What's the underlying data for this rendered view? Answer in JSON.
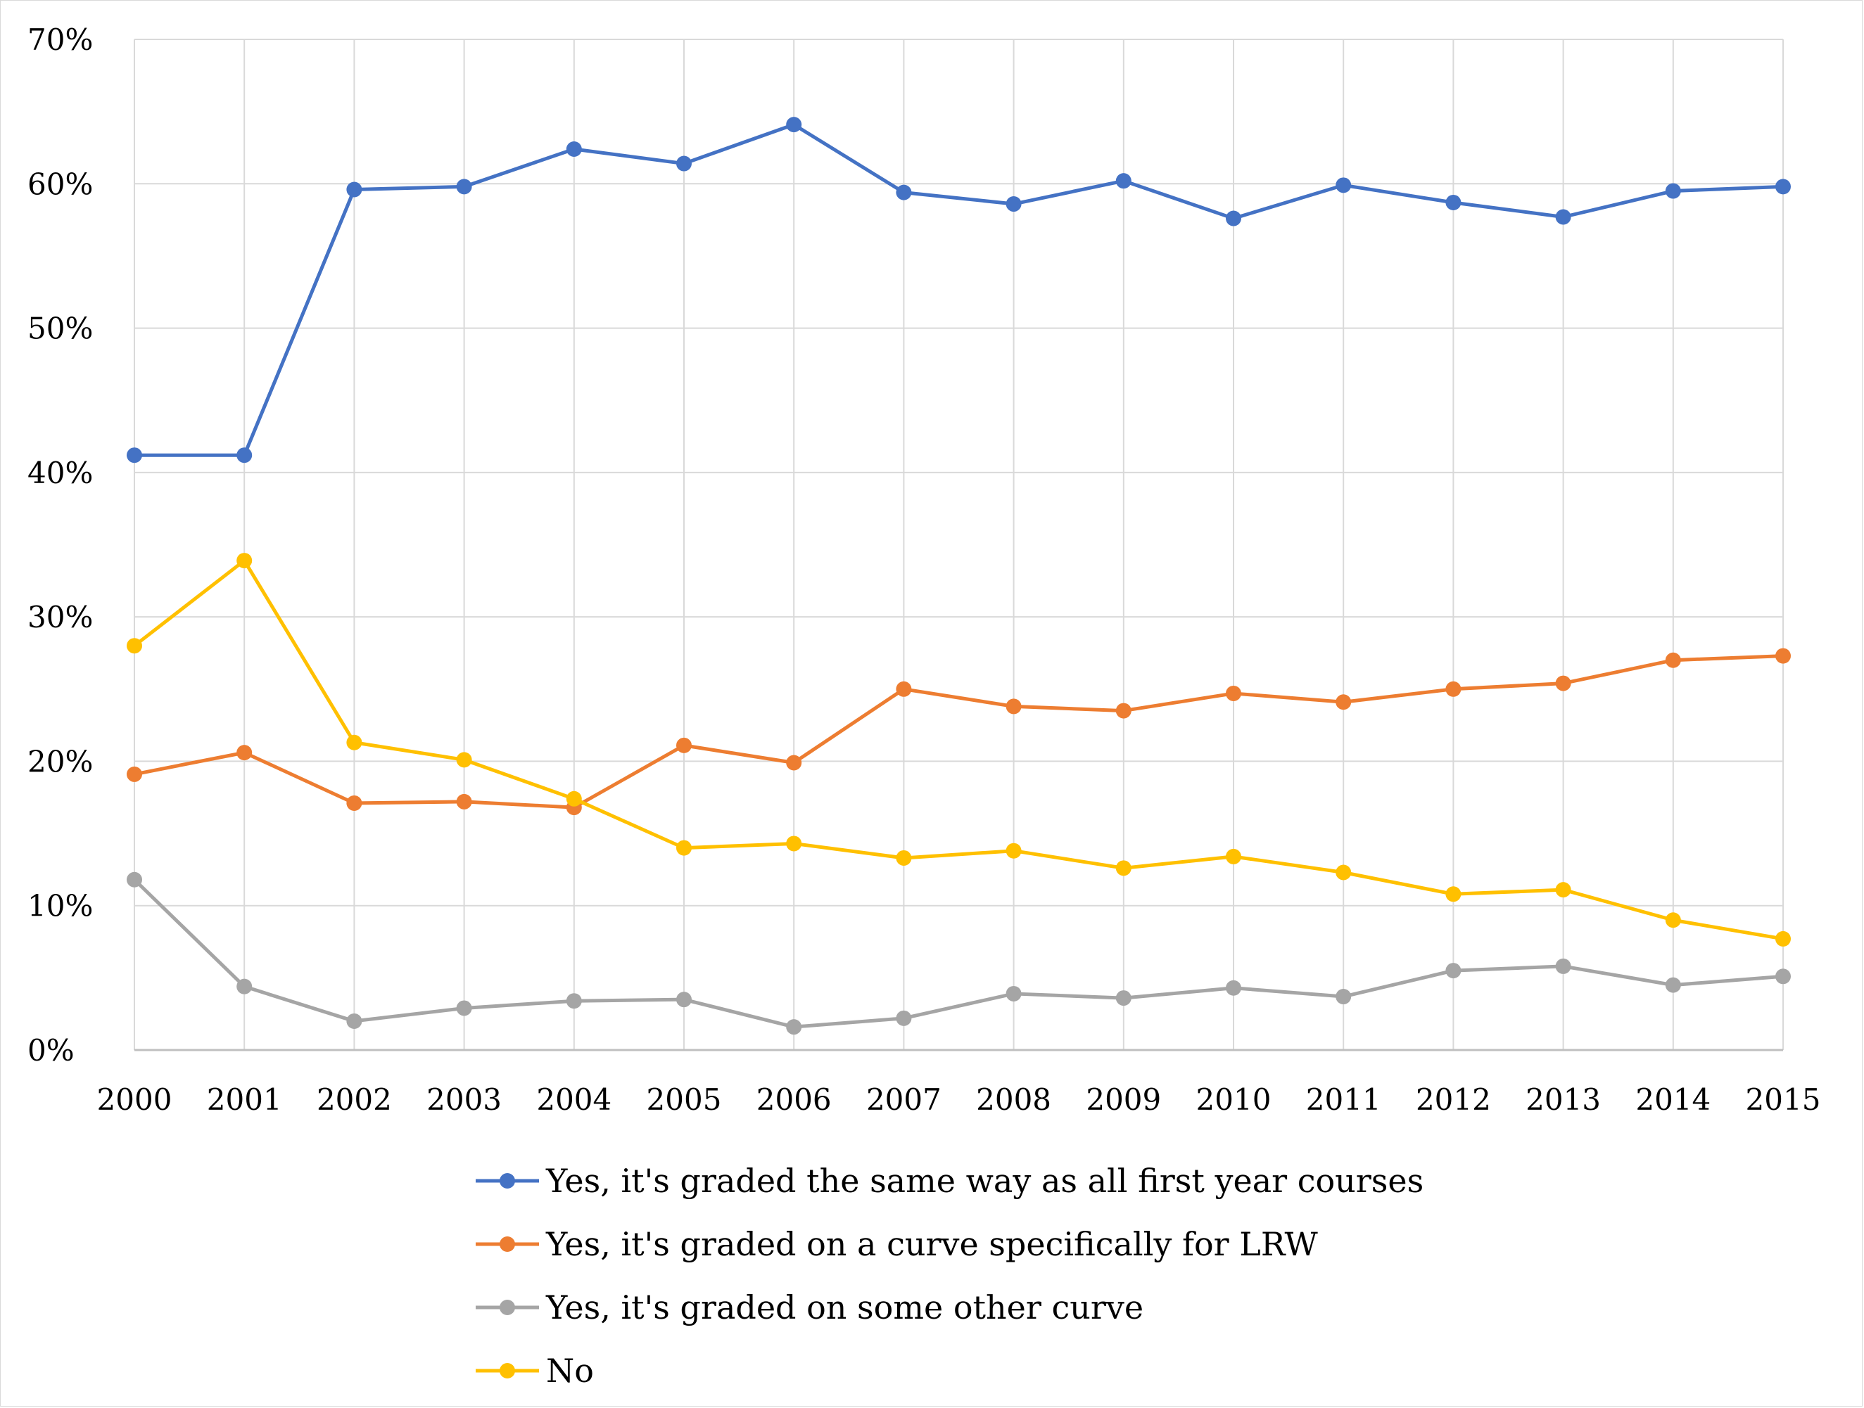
{
  "chart_data": {
    "type": "line",
    "title": "",
    "xlabel": "",
    "ylabel": "",
    "x": [
      "2000",
      "2001",
      "2002",
      "2003",
      "2004",
      "2005",
      "2006",
      "2007",
      "2008",
      "2009",
      "2010",
      "2011",
      "2012",
      "2013",
      "2014",
      "2015"
    ],
    "ylim": [
      0,
      70
    ],
    "yticks": [
      0,
      10,
      20,
      30,
      40,
      50,
      60,
      70
    ],
    "ytick_labels": [
      "0%",
      "10%",
      "20%",
      "30%",
      "40%",
      "50%",
      "60%",
      "70%"
    ],
    "grid": true,
    "legend_position": "bottom",
    "series": [
      {
        "name": "Yes, it's graded the same way as all first year courses",
        "color": "#4472C4",
        "values": [
          41.2,
          41.2,
          59.6,
          59.8,
          62.4,
          61.4,
          64.1,
          59.4,
          58.6,
          60.2,
          57.6,
          59.9,
          58.7,
          57.7,
          59.5,
          59.8
        ]
      },
      {
        "name": "Yes, it's graded on a curve specifically for LRW",
        "color": "#ED7D31",
        "values": [
          19.1,
          20.6,
          17.1,
          17.2,
          16.8,
          21.1,
          19.9,
          25.0,
          23.8,
          23.5,
          24.7,
          24.1,
          25.0,
          25.4,
          27.0,
          27.3
        ]
      },
      {
        "name": "Yes, it's graded on some other curve",
        "color": "#A5A5A5",
        "values": [
          11.8,
          4.4,
          2.0,
          2.9,
          3.4,
          3.5,
          1.6,
          2.2,
          3.9,
          3.6,
          4.3,
          3.7,
          5.5,
          5.8,
          4.5,
          5.1
        ]
      },
      {
        "name": "No",
        "color": "#FFC000",
        "values": [
          28.0,
          33.9,
          21.3,
          20.1,
          17.4,
          14.0,
          14.3,
          13.3,
          13.8,
          12.6,
          13.4,
          12.3,
          10.8,
          11.1,
          9.0,
          7.7
        ]
      }
    ]
  },
  "colors": {
    "grid": "#d9d9d9",
    "axis": "#bfbfbf",
    "text": "#000000"
  }
}
